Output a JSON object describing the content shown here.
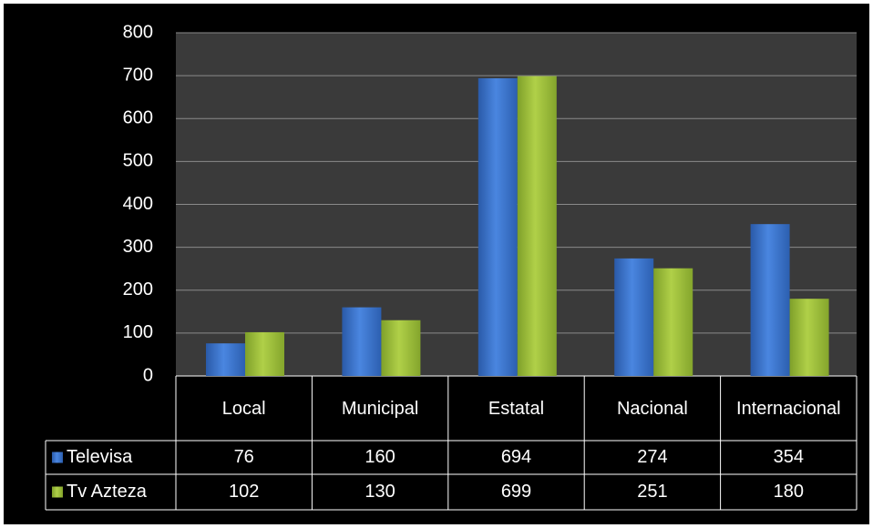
{
  "chart_data": {
    "type": "bar",
    "categories": [
      "Local",
      "Municipal",
      "Estatal",
      "Nacional",
      "Internacional"
    ],
    "series": [
      {
        "name": "Televisa",
        "color": "#3f78d0",
        "values": [
          76,
          160,
          694,
          274,
          354
        ]
      },
      {
        "name": "Tv Azteza",
        "color": "#9fc03c",
        "values": [
          102,
          130,
          699,
          251,
          180
        ]
      }
    ],
    "ylim": [
      0,
      800
    ],
    "yticks": [
      0,
      100,
      200,
      300,
      400,
      500,
      600,
      700,
      800
    ],
    "grid": true
  }
}
